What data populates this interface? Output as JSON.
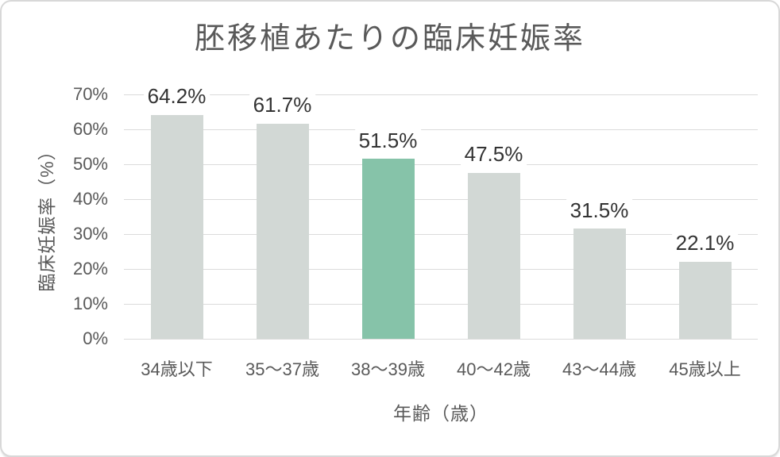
{
  "chart_data": {
    "type": "bar",
    "title": "胚移植あたりの臨床妊娠率",
    "xlabel": "年齢（歳）",
    "ylabel": "臨床妊娠率（%）",
    "categories": [
      "34歳以下",
      "35〜37歳",
      "38〜39歳",
      "40〜42歳",
      "43〜44歳",
      "45歳以上"
    ],
    "values": [
      64.2,
      61.7,
      51.5,
      47.5,
      31.5,
      22.1
    ],
    "data_labels": [
      "64.2%",
      "61.7%",
      "51.5%",
      "47.5%",
      "31.5%",
      "22.1%"
    ],
    "ylim": [
      0,
      70
    ],
    "ytick_labels": [
      "0%",
      "10%",
      "20%",
      "30%",
      "40%",
      "50%",
      "60%",
      "70%"
    ],
    "grid": "horizontal",
    "legend": "none",
    "highlight_index": 2,
    "colors": {
      "bar_default": "#D2D8D5",
      "bar_highlight": "#86C3A9",
      "gridline": "#DBDBDB",
      "axis_text": "#595959",
      "title_text": "#595959",
      "data_label": "#333333",
      "card_border": "#D8D8D8",
      "background": "#FFFFFF"
    }
  }
}
